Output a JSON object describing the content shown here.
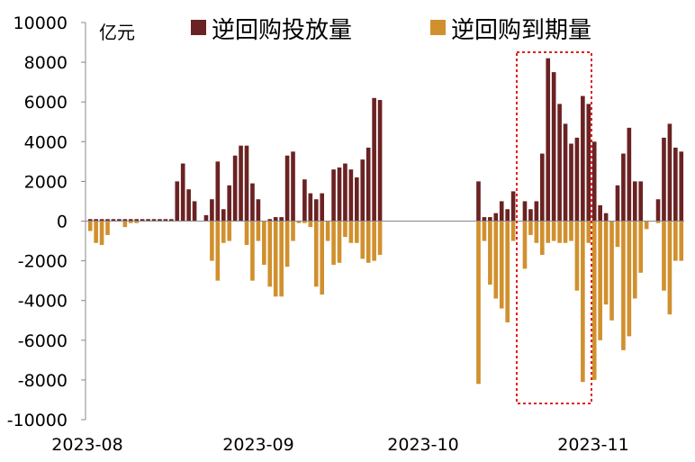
{
  "chart_data": {
    "type": "bar",
    "unit": "亿元",
    "ylim": [
      -10000,
      10000
    ],
    "yticks": [
      10000,
      8000,
      6000,
      4000,
      2000,
      0,
      -2000,
      -4000,
      -6000,
      -8000,
      -10000
    ],
    "x_tick_labels": [
      "2023-08",
      "2023-09",
      "2023-10",
      "2023-11"
    ],
    "legend_position": "top",
    "grid": false,
    "colors": {
      "issuance": "#6b2223",
      "maturity": "#d1902e",
      "highlight": "#e02020"
    },
    "series": [
      {
        "name": "逆回购投放量",
        "values": [
          100,
          100,
          100,
          100,
          100,
          100,
          100,
          100,
          100,
          100,
          100,
          100,
          100,
          100,
          100,
          2000,
          2900,
          1600,
          1000,
          0,
          300,
          1100,
          3000,
          600,
          1800,
          3300,
          3800,
          3800,
          1900,
          1100,
          0,
          100,
          200,
          200,
          3300,
          3500,
          0,
          2100,
          1400,
          1100,
          1400,
          0,
          2600,
          2700,
          2900,
          2600,
          2200,
          3100,
          3700,
          6200,
          6100,
          0,
          0,
          0,
          0,
          0,
          0,
          0,
          0,
          0,
          0,
          0,
          0,
          0,
          0,
          0,
          0,
          2000,
          200,
          200,
          400,
          1000,
          600,
          1500,
          0,
          1000,
          600,
          1000,
          3400,
          8200,
          7500,
          5900,
          4900,
          3900,
          4200,
          6300,
          5900,
          4000,
          800,
          400,
          0,
          1800,
          3400,
          4700,
          2000,
          2000,
          0,
          0,
          1100,
          4200,
          4900,
          3700,
          3500
        ]
      },
      {
        "name": "逆回购到期量",
        "values": [
          -500,
          -1100,
          -1200,
          -700,
          0,
          0,
          -300,
          -100,
          -100,
          0,
          0,
          0,
          0,
          0,
          0,
          0,
          0,
          0,
          0,
          0,
          0,
          -2000,
          -3000,
          -1100,
          -1000,
          0,
          0,
          -1200,
          -3000,
          -1000,
          -2200,
          -3300,
          -3800,
          -3800,
          -2300,
          -1000,
          -100,
          -100,
          -300,
          -3300,
          -3700,
          -1000,
          -2200,
          -2100,
          -800,
          -1100,
          -1100,
          -1900,
          -2100,
          -2000,
          -1700,
          0,
          0,
          0,
          0,
          0,
          0,
          0,
          0,
          0,
          0,
          0,
          0,
          0,
          0,
          0,
          0,
          -8200,
          -1000,
          -3200,
          -3900,
          -4400,
          -5100,
          -1000,
          0,
          -2400,
          -700,
          -1100,
          -1700,
          -1100,
          -1000,
          -1100,
          -1100,
          -1000,
          -3500,
          -8100,
          -1100,
          -8000,
          -6000,
          -4200,
          -5000,
          -1300,
          -6500,
          -5800,
          -3900,
          -2600,
          -400,
          0,
          -100,
          -3500,
          -4700,
          -2000,
          -2000
        ]
      }
    ]
  }
}
